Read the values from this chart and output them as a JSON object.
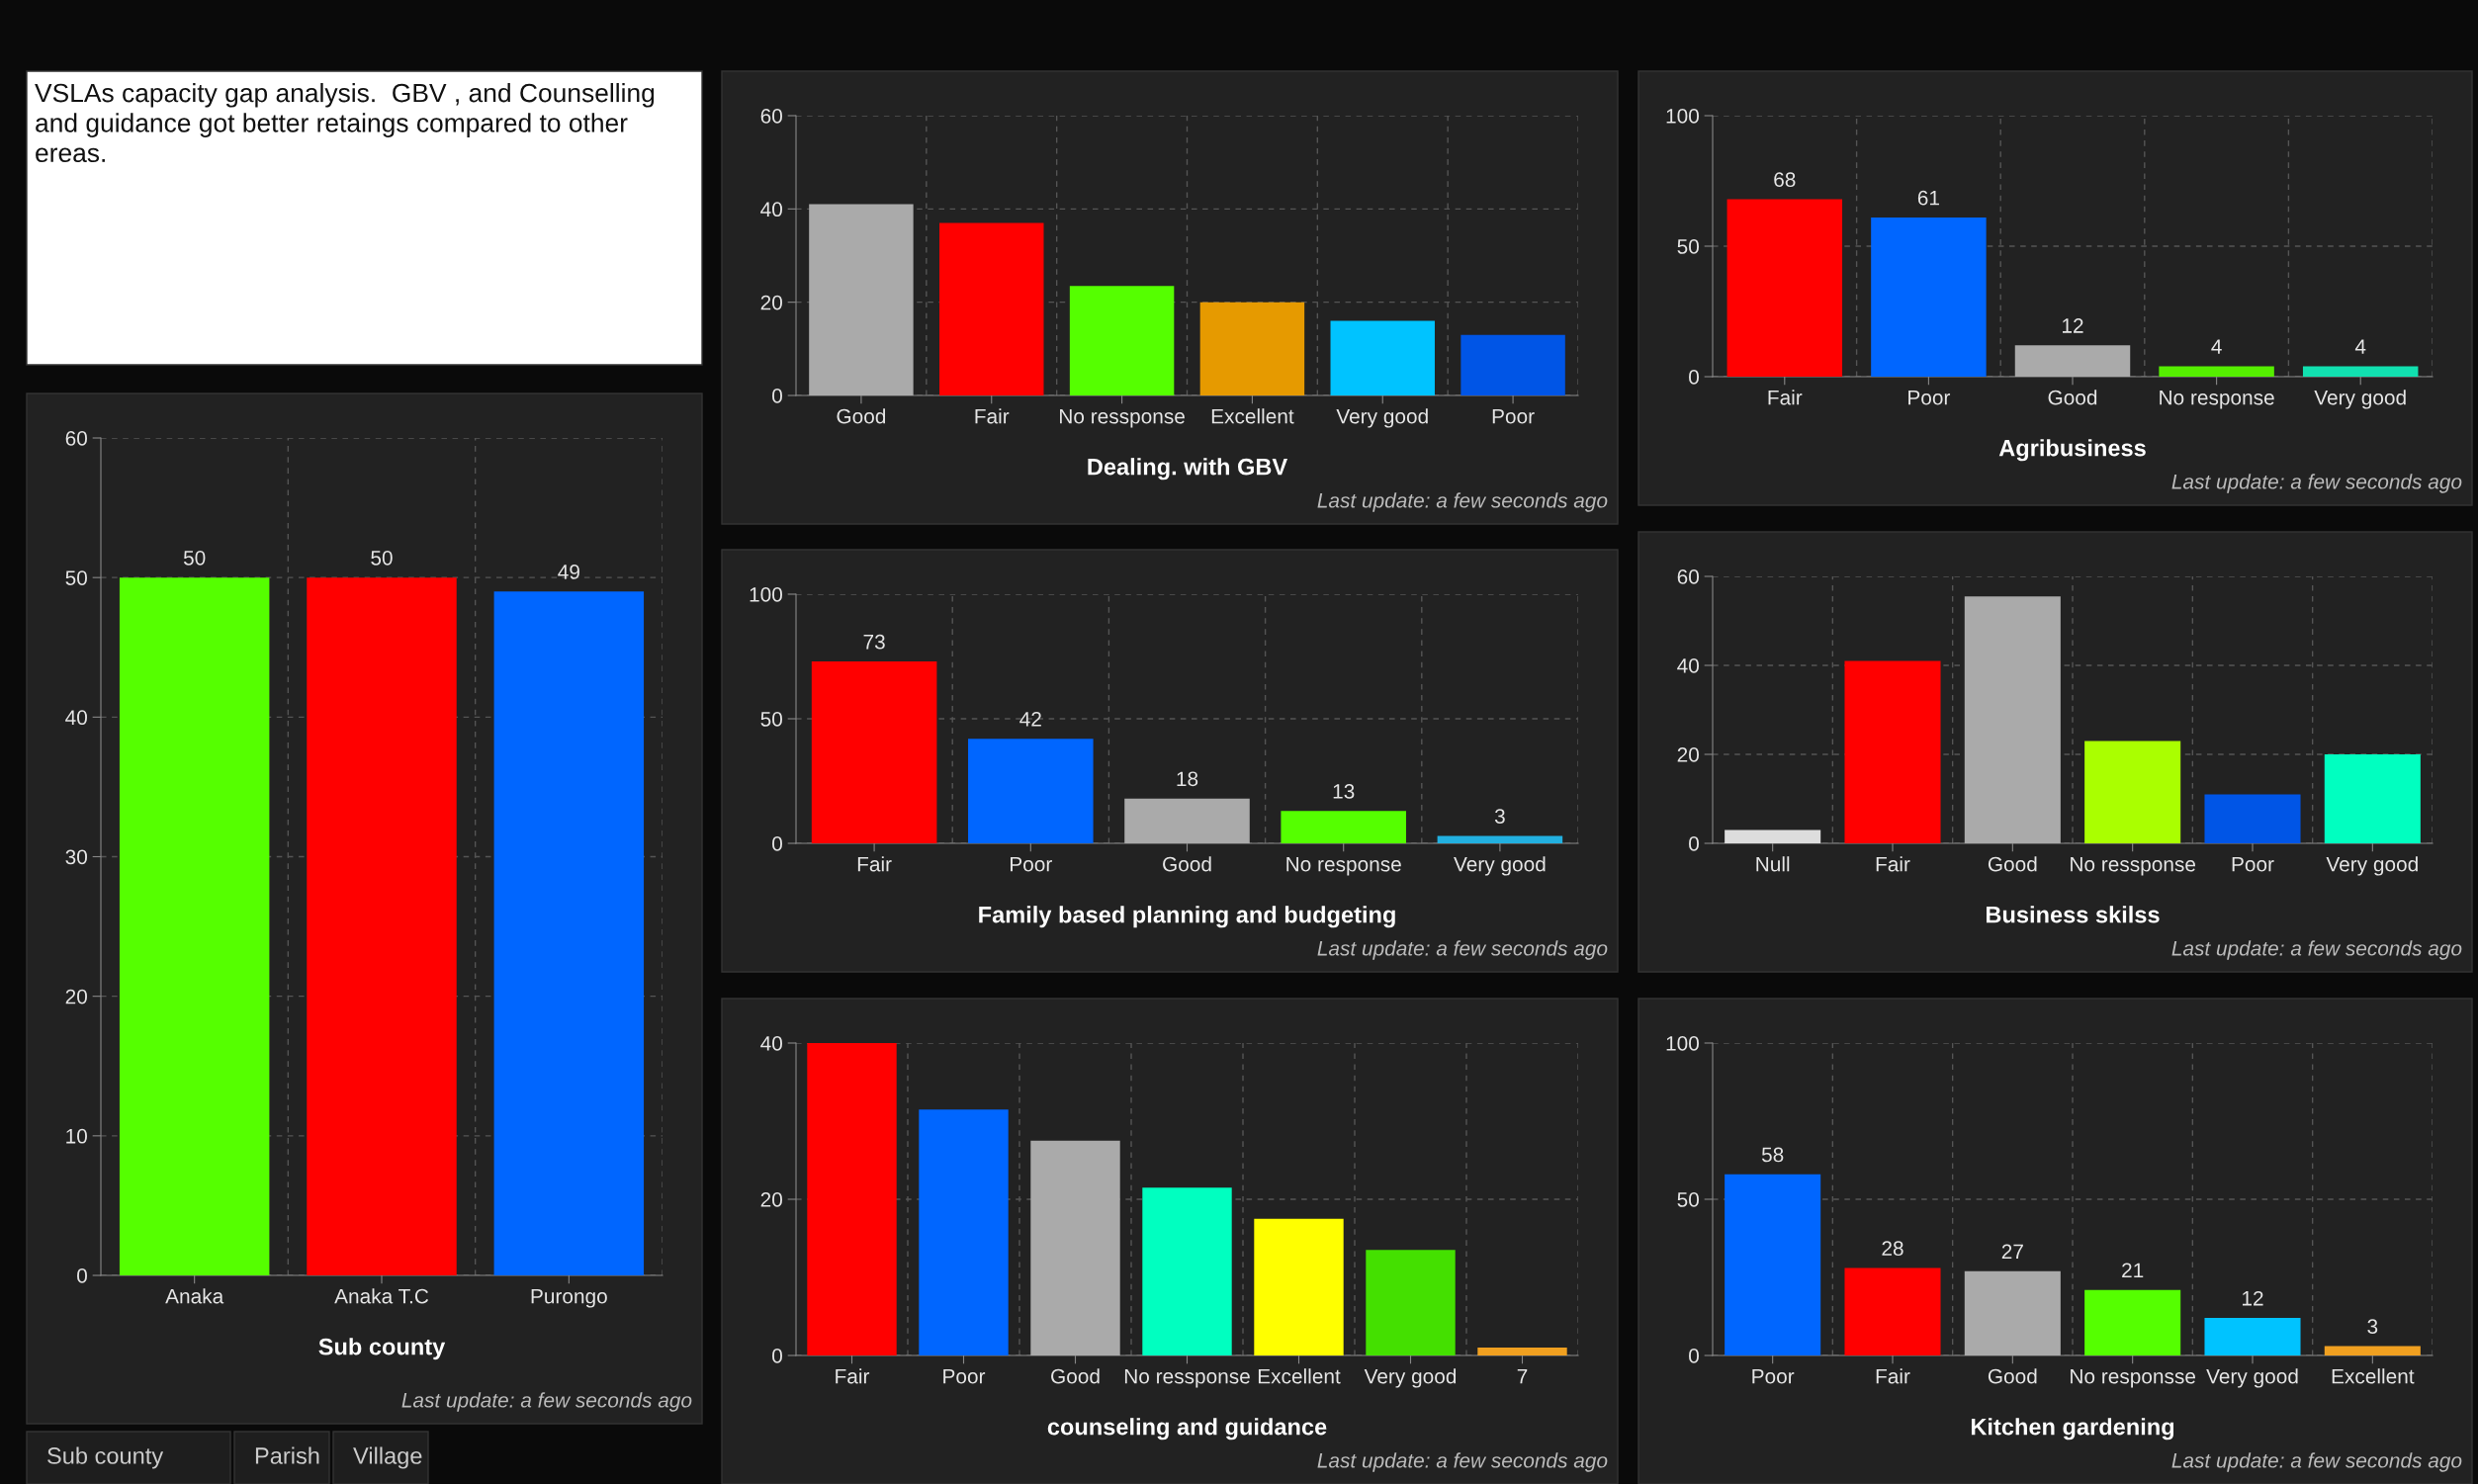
{
  "chart_data": [
    {
      "type": "other",
      "title": "VSLAs capacity gap analysis.  GBV , and Counselling and guidance got better retaings compared to other ereas."
    },
    {
      "type": "bar",
      "xlabel": "Dealing. with GBV",
      "categories": [
        "Good",
        "Fair",
        "No ressponse",
        "Excellent",
        "Very good",
        "Poor"
      ],
      "values": [
        41,
        37,
        23.5,
        20,
        16,
        13
      ],
      "colors": [
        "#aaaaaa",
        "#ff0000",
        "#55ff00",
        "#e69a00",
        "#00c3ff",
        "#0055e6"
      ],
      "ylim": [
        0,
        60
      ],
      "yticks": [
        0,
        20,
        40,
        60
      ],
      "grid": true,
      "annotations": [
        "Last update: a few seconds ago"
      ]
    },
    {
      "type": "bar",
      "xlabel": "Agribusiness",
      "categories": [
        "Fair",
        "Poor",
        "Good",
        "No response",
        "Very good"
      ],
      "values": [
        68,
        61,
        12,
        4,
        4
      ],
      "colors": [
        "#ff0000",
        "#0066ff",
        "#aaaaaa",
        "#55ee00",
        "#11e0b0"
      ],
      "ylim": [
        0,
        100
      ],
      "yticks": [
        0,
        50,
        100
      ],
      "grid": true,
      "data_labels": true,
      "annotations": [
        "Last update: a few seconds ago"
      ]
    },
    {
      "type": "bar",
      "xlabel": "Sub county",
      "categories": [
        "Anaka",
        "Anaka T.C",
        "Purongo"
      ],
      "values": [
        50,
        50,
        49
      ],
      "colors": [
        "#55ff00",
        "#ff0000",
        "#0066ff"
      ],
      "ylim": [
        0,
        60
      ],
      "yticks": [
        0,
        10,
        20,
        30,
        40,
        50,
        60
      ],
      "grid": true,
      "data_labels": true,
      "annotations": [
        "Last update: a few seconds ago"
      ]
    },
    {
      "type": "bar",
      "xlabel": "Family based planning and budgeting",
      "categories": [
        "Fair",
        "Poor",
        "Good",
        "No response",
        "Very good"
      ],
      "values": [
        73,
        42,
        18,
        13,
        3
      ],
      "colors": [
        "#ff0000",
        "#0066ff",
        "#aaaaaa",
        "#55ff00",
        "#22b0e0"
      ],
      "ylim": [
        0,
        100
      ],
      "yticks": [
        0,
        50,
        100
      ],
      "grid": true,
      "data_labels": true,
      "annotations": [
        "Last update: a few seconds ago"
      ]
    },
    {
      "type": "bar",
      "xlabel": "Business skilss",
      "categories": [
        "Null",
        "Fair",
        "Good",
        "No ressponse",
        "Poor",
        "Very good"
      ],
      "values": [
        3,
        41,
        55.5,
        23,
        11,
        20
      ],
      "colors": [
        "#dddddd",
        "#ff0000",
        "#aaaaaa",
        "#aaff00",
        "#0055e6",
        "#00ffc0"
      ],
      "ylim": [
        0,
        60
      ],
      "yticks": [
        0,
        20,
        40,
        60
      ],
      "grid": true,
      "annotations": [
        "Last update: a few seconds ago"
      ]
    },
    {
      "type": "bar",
      "xlabel": "counseling and guidance",
      "categories": [
        "Fair",
        "Poor",
        "Good",
        "No ressponse",
        "Excellent",
        "Very good",
        "7"
      ],
      "values": [
        40,
        31.5,
        27.5,
        21.5,
        17.5,
        13.5,
        1
      ],
      "colors": [
        "#ff0000",
        "#0066ff",
        "#aaaaaa",
        "#00ffc0",
        "#ffff00",
        "#44e000",
        "#f0a020"
      ],
      "ylim": [
        0,
        40
      ],
      "yticks": [
        0,
        20,
        40
      ],
      "grid": true,
      "annotations": [
        "Last update: a few seconds ago"
      ]
    },
    {
      "type": "bar",
      "xlabel": "Kitchen gardening",
      "categories": [
        "Poor",
        "Fair",
        "Good",
        "No responsse",
        "Very good",
        "Excellent"
      ],
      "values": [
        58,
        28,
        27,
        21,
        12,
        3
      ],
      "colors": [
        "#0066ff",
        "#ff0000",
        "#aaaaaa",
        "#55ff00",
        "#00c3ff",
        "#f0a020"
      ],
      "ylim": [
        0,
        100
      ],
      "yticks": [
        0,
        50,
        100
      ],
      "grid": true,
      "data_labels": true,
      "annotations": [
        "Last update: a few seconds ago"
      ]
    },
    {
      "type": "other",
      "annotations": [
        "Sub county",
        "Parish",
        "Village"
      ]
    }
  ]
}
